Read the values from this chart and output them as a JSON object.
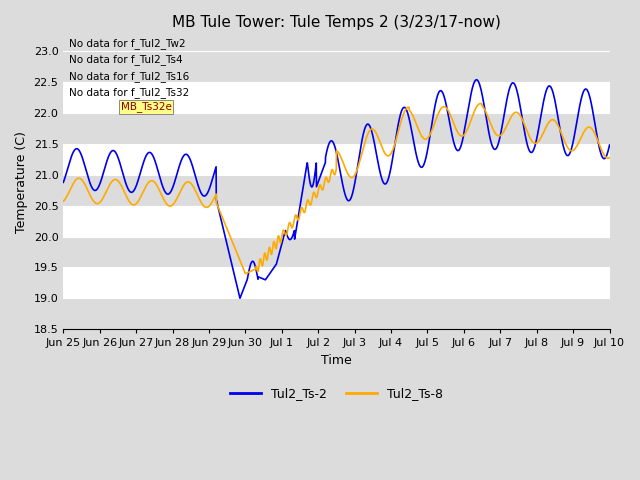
{
  "title": "MB Tule Tower: Tule Temps 2 (3/23/17-now)",
  "xlabel": "Time",
  "ylabel": "Temperature (C)",
  "ylim": [
    18.5,
    23.25
  ],
  "xlim": [
    0,
    15
  ],
  "bg_color": "#dcdcdc",
  "line1_color": "#0000ee",
  "line2_color": "#ffaa00",
  "line1_label": "Tul2_Ts-2",
  "line2_label": "Tul2_Ts-8",
  "no_data_texts": [
    "No data for f_Tul2_Tw2",
    "No data for f_Tul2_Ts4",
    "No data for f_Tul2_Ts16",
    "No data for f_Tul2_Ts32"
  ],
  "xtick_labels": [
    "Jun 25",
    "Jun 26",
    "Jun 27",
    "Jun 28",
    "Jun 29",
    "Jun 30",
    "Jul 1",
    "Jul 2",
    "Jul 3",
    "Jul 4",
    "Jul 5",
    "Jul 6",
    "Jul 7",
    "Jul 8",
    "Jul 9",
    "Jul 10"
  ],
  "yticks": [
    18.5,
    19.0,
    19.5,
    20.0,
    20.5,
    21.0,
    21.5,
    22.0,
    22.5,
    23.0
  ],
  "title_fontsize": 11,
  "tick_fontsize": 8,
  "axis_label_fontsize": 9,
  "legend_fontsize": 9,
  "nodata_fontsize": 7.5
}
